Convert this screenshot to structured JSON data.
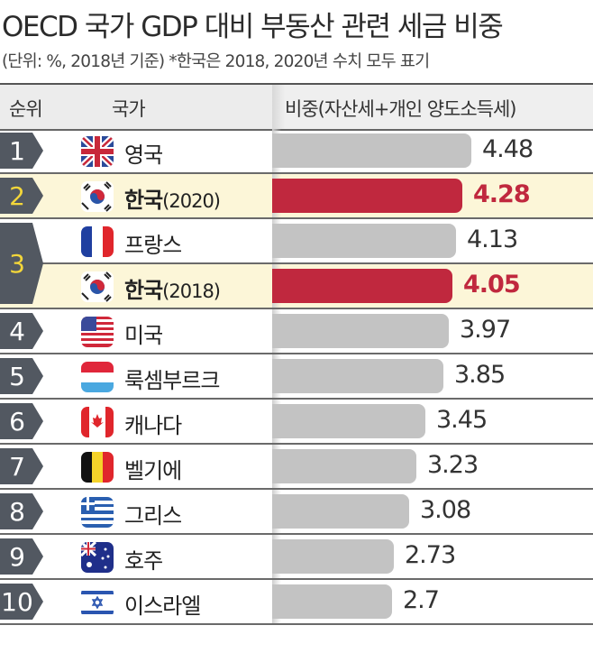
{
  "title": "OECD 국가 GDP 대비 부동산 관련 세금 비중",
  "subtitle": "(단위: %, 2018년 기준)  *한국은 2018, 2020년 수치 모두 표기",
  "header": {
    "rank": "순위",
    "country": "국가",
    "share": "비중(자산세+개인 양도소득세)"
  },
  "colors": {
    "highlight_bar": "#c0283e",
    "bar": "#c3c3c3",
    "highlight_row": "#fcf6d8",
    "badge": "#525861",
    "highlight_rank": "#f3d63a"
  },
  "chart_data": {
    "type": "bar",
    "title": "OECD 국가 GDP 대비 부동산 관련 세금 비중",
    "ylabel": "비중(자산세+개인 양도소득세)",
    "xlim": [
      0,
      4.48
    ],
    "rows": [
      {
        "rank": "1",
        "country": "영국",
        "suffix": "",
        "value": 4.48,
        "value_label": "4.48",
        "flag": "gb",
        "highlight": false
      },
      {
        "rank": "2",
        "country": "한국",
        "suffix": "(2020)",
        "value": 4.28,
        "value_label": "4.28",
        "flag": "kr",
        "highlight": true
      },
      {
        "rank": "3",
        "country": "프랑스",
        "suffix": "",
        "value": 4.13,
        "value_label": "4.13",
        "flag": "fr",
        "highlight": false
      },
      {
        "rank": "3",
        "country": "한국",
        "suffix": "(2018)",
        "value": 4.05,
        "value_label": "4.05",
        "flag": "kr",
        "highlight": true
      },
      {
        "rank": "4",
        "country": "미국",
        "suffix": "",
        "value": 3.97,
        "value_label": "3.97",
        "flag": "us",
        "highlight": false
      },
      {
        "rank": "5",
        "country": "룩셈부르크",
        "suffix": "",
        "value": 3.85,
        "value_label": "3.85",
        "flag": "lu",
        "highlight": false
      },
      {
        "rank": "6",
        "country": "캐나다",
        "suffix": "",
        "value": 3.45,
        "value_label": "3.45",
        "flag": "ca",
        "highlight": false
      },
      {
        "rank": "7",
        "country": "벨기에",
        "suffix": "",
        "value": 3.23,
        "value_label": "3.23",
        "flag": "be",
        "highlight": false
      },
      {
        "rank": "8",
        "country": "그리스",
        "suffix": "",
        "value": 3.08,
        "value_label": "3.08",
        "flag": "gr",
        "highlight": false
      },
      {
        "rank": "9",
        "country": "호주",
        "suffix": "",
        "value": 2.73,
        "value_label": "2.73",
        "flag": "au",
        "highlight": false
      },
      {
        "rank": "10",
        "country": "이스라엘",
        "suffix": "",
        "value": 2.7,
        "value_label": "2.7",
        "flag": "il",
        "highlight": false
      }
    ]
  }
}
